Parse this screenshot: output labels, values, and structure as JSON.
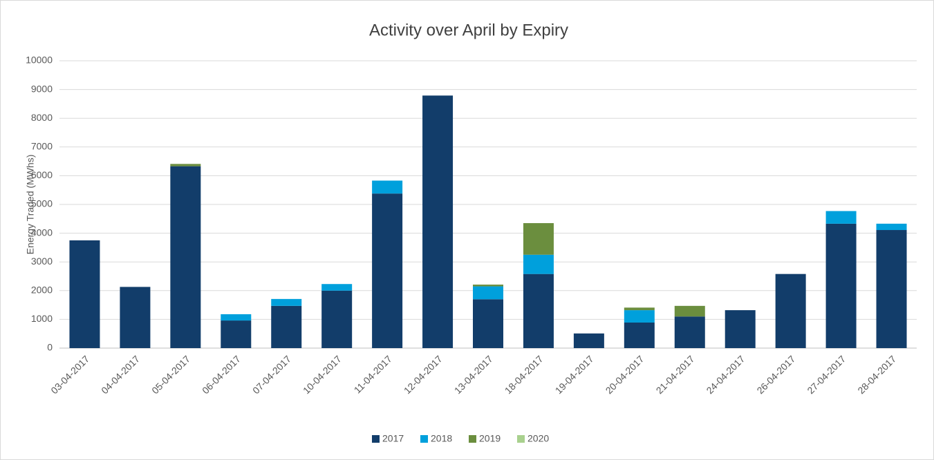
{
  "chart_data": {
    "type": "stacked_bar",
    "title": "Activity over April by Expiry",
    "y_label": "Energy Traded (MWhs)",
    "categories": [
      "03-04-2017",
      "04-04-2017",
      "05-04-2017",
      "06-04-2017",
      "07-04-2017",
      "10-04-2017",
      "11-04-2017",
      "12-04-2017",
      "13-04-2017",
      "18-04-2017",
      "19-04-2017",
      "20-04-2017",
      "21-04-2017",
      "24-04-2017",
      "26-04-2017",
      "27-04-2017",
      "28-04-2017"
    ],
    "series": [
      {
        "name": "2017",
        "color": "#123d6a",
        "values": [
          3750,
          2130,
          6330,
          960,
          1470,
          2000,
          5380,
          8790,
          1700,
          2580,
          510,
          890,
          1100,
          1320,
          2580,
          4330,
          4110
        ]
      },
      {
        "name": "2018",
        "color": "#00a0dc",
        "values": [
          0,
          0,
          0,
          220,
          240,
          230,
          450,
          0,
          450,
          670,
          0,
          430,
          0,
          0,
          0,
          440,
          220
        ]
      },
      {
        "name": "2019",
        "color": "#6b8e3e",
        "values": [
          0,
          0,
          80,
          0,
          0,
          0,
          0,
          0,
          60,
          1100,
          0,
          90,
          370,
          0,
          0,
          0,
          0
        ]
      },
      {
        "name": "2020",
        "color": "#a9d18e",
        "values": [
          0,
          0,
          0,
          0,
          0,
          0,
          0,
          0,
          0,
          0,
          0,
          0,
          0,
          0,
          0,
          0,
          0
        ]
      }
    ],
    "ylim": [
      0,
      10000
    ],
    "yticks": [
      0,
      1000,
      2000,
      3000,
      4000,
      5000,
      6000,
      7000,
      8000,
      9000,
      10000
    ],
    "grid": true,
    "legend": "bottom"
  }
}
